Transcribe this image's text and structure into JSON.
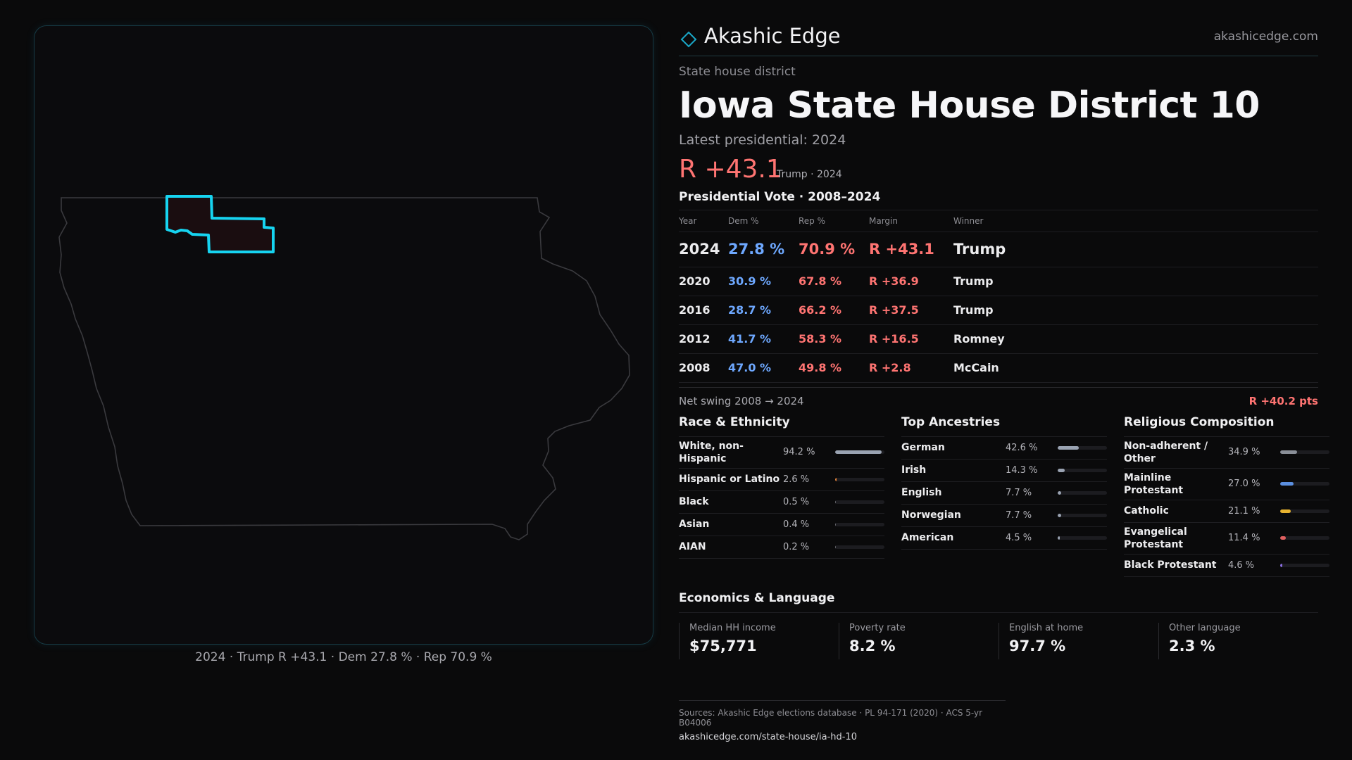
{
  "brand": {
    "name": "Akashic Edge",
    "url": "akashicedge.com"
  },
  "header": {
    "kicker": "State house district",
    "title": "Iowa State House District 10",
    "latest": "Latest presidential: 2024",
    "headline_margin": "R +43.1",
    "headline_sub": "Trump · 2024"
  },
  "presidential": {
    "title": "Presidential Vote · 2008–2024",
    "headers": {
      "year": "Year",
      "dem": "Dem %",
      "rep": "Rep %",
      "margin": "Margin",
      "winner": "Winner"
    },
    "rows": [
      {
        "year": "2024",
        "dem": "27.8 %",
        "rep": "70.9 %",
        "margin": "R +43.1",
        "winner": "Trump"
      },
      {
        "year": "2020",
        "dem": "30.9 %",
        "rep": "67.8 %",
        "margin": "R +36.9",
        "winner": "Trump"
      },
      {
        "year": "2016",
        "dem": "28.7 %",
        "rep": "66.2 %",
        "margin": "R +37.5",
        "winner": "Trump"
      },
      {
        "year": "2012",
        "dem": "41.7 %",
        "rep": "58.3 %",
        "margin": "R +16.5",
        "winner": "Romney"
      },
      {
        "year": "2008",
        "dem": "47.0 %",
        "rep": "49.8 %",
        "margin": "R +2.8",
        "winner": "McCain"
      }
    ],
    "swing_label": "Net swing 2008 → 2024",
    "swing_value": "R +40.2 pts"
  },
  "race": {
    "title": "Race & Ethnicity",
    "rows": [
      {
        "label": "White, non-Hispanic",
        "value": "94.2 %",
        "pct": 94.2,
        "color": "#9aa3b2"
      },
      {
        "label": "Hispanic or Latino",
        "value": "2.6 %",
        "pct": 2.6,
        "color": "#e8853a"
      },
      {
        "label": "Black",
        "value": "0.5 %",
        "pct": 0.5,
        "color": "#6a6a70"
      },
      {
        "label": "Asian",
        "value": "0.4 %",
        "pct": 0.4,
        "color": "#6a6a70"
      },
      {
        "label": "AIAN",
        "value": "0.2 %",
        "pct": 0.2,
        "color": "#6a6a70"
      }
    ]
  },
  "ancestry": {
    "title": "Top Ancestries",
    "rows": [
      {
        "label": "German",
        "value": "42.6 %",
        "pct": 42.6,
        "color": "#9aa3b2"
      },
      {
        "label": "Irish",
        "value": "14.3 %",
        "pct": 14.3,
        "color": "#9aa3b2"
      },
      {
        "label": "English",
        "value": "7.7 %",
        "pct": 7.7,
        "color": "#9aa3b2"
      },
      {
        "label": "Norwegian",
        "value": "7.7 %",
        "pct": 7.7,
        "color": "#9aa3b2"
      },
      {
        "label": "American",
        "value": "4.5 %",
        "pct": 4.5,
        "color": "#9aa3b2"
      }
    ]
  },
  "religion": {
    "title": "Religious Composition",
    "rows": [
      {
        "label": "Non-adherent / Other",
        "value": "34.9 %",
        "pct": 34.9,
        "color": "#8a8f98"
      },
      {
        "label": "Mainline Protestant",
        "value": "27.0 %",
        "pct": 27.0,
        "color": "#5b8fe0"
      },
      {
        "label": "Catholic",
        "value": "21.1 %",
        "pct": 21.1,
        "color": "#e8b430"
      },
      {
        "label": "Evangelical Protestant",
        "value": "11.4 %",
        "pct": 11.4,
        "color": "#e06060"
      },
      {
        "label": "Black Protestant",
        "value": "4.6 %",
        "pct": 4.6,
        "color": "#8a6ee0"
      }
    ]
  },
  "economics": {
    "title": "Economics & Language",
    "cells": [
      {
        "label": "Median HH income",
        "value": "$75,771"
      },
      {
        "label": "Poverty rate",
        "value": "8.2 %"
      },
      {
        "label": "English at home",
        "value": "97.7 %"
      },
      {
        "label": "Other language",
        "value": "2.3 %"
      }
    ]
  },
  "map": {
    "caption": "2024 · Trump R +43.1 · Dem 27.8 % · Rep 70.9 %"
  },
  "sources": {
    "text": "Sources: Akashic Edge elections database · PL 94-171 (2020) · ACS 5-yr B04006",
    "url": "akashicedge.com/state-house/ia-hd-10"
  }
}
